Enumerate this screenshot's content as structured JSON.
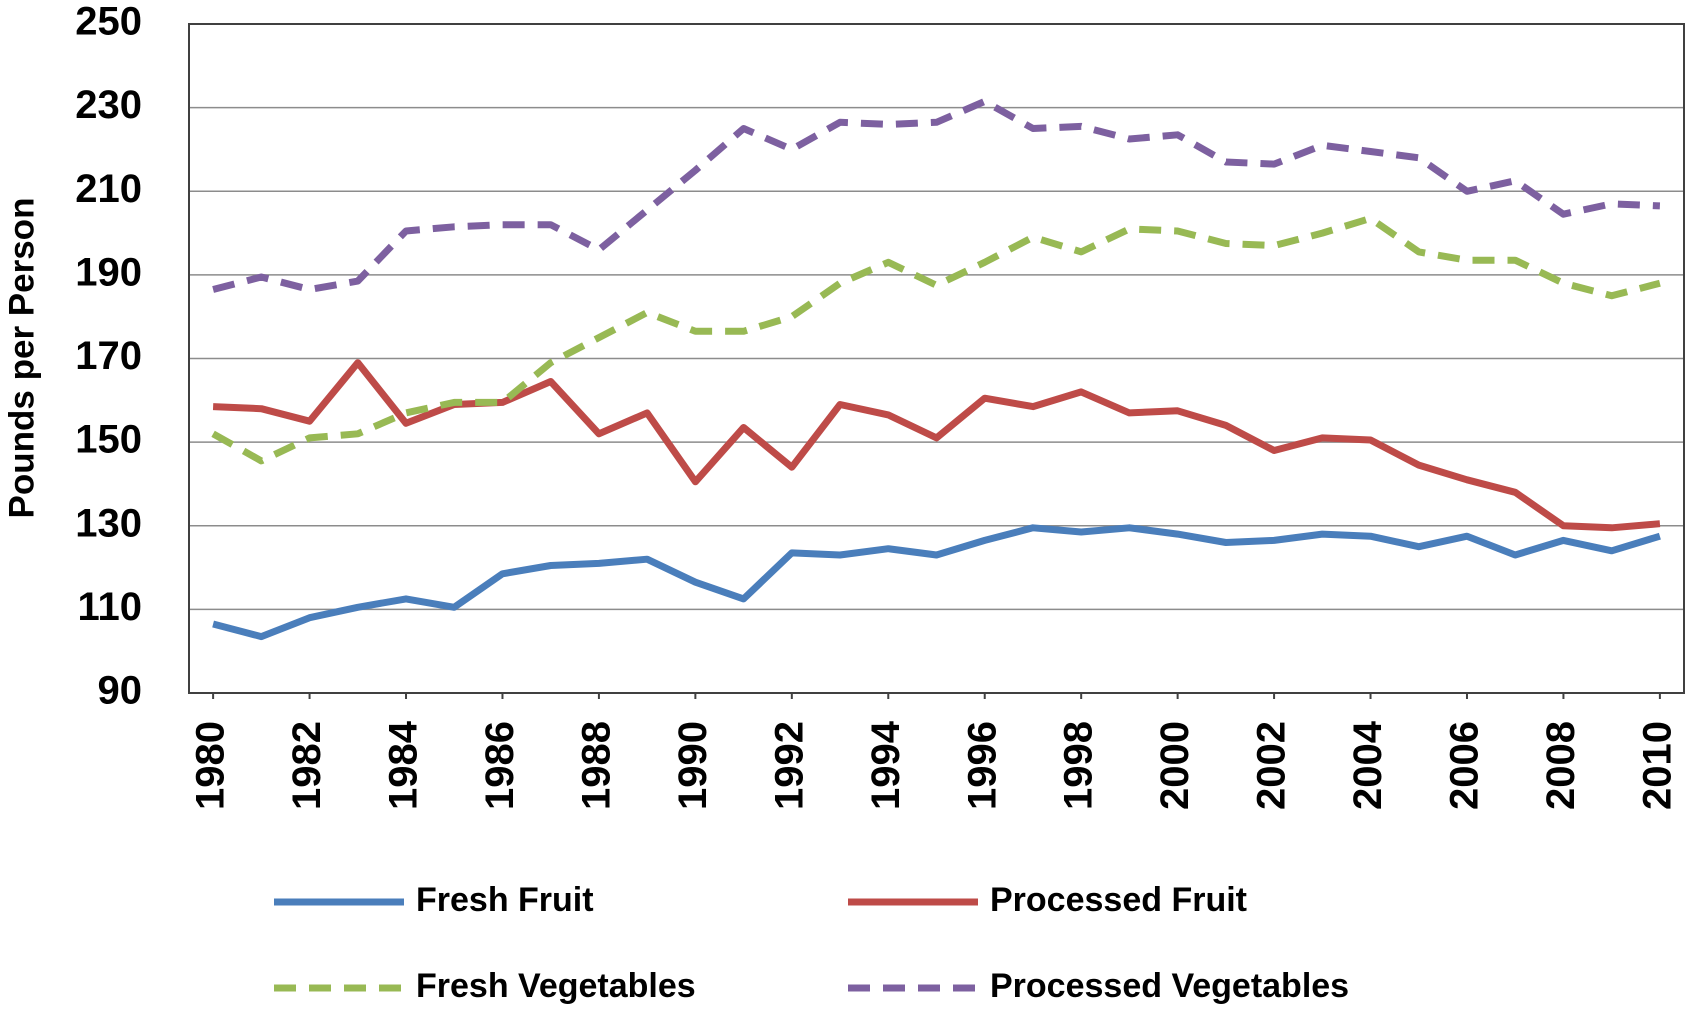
{
  "chart_data": {
    "type": "line",
    "y_label": "Pounds per Person",
    "x": [
      1980,
      1981,
      1982,
      1983,
      1984,
      1985,
      1986,
      1987,
      1988,
      1989,
      1990,
      1991,
      1992,
      1993,
      1994,
      1995,
      1996,
      1997,
      1998,
      1999,
      2000,
      2001,
      2002,
      2003,
      2004,
      2005,
      2006,
      2007,
      2008,
      2009,
      2010
    ],
    "xlim": [
      1979.5,
      2010.5
    ],
    "xticks": [
      1980,
      1982,
      1984,
      1986,
      1988,
      1990,
      1992,
      1994,
      1996,
      1998,
      2000,
      2002,
      2004,
      2006,
      2008,
      2010
    ],
    "ylim": [
      90,
      250
    ],
    "yticks": [
      90,
      110,
      130,
      150,
      170,
      190,
      210,
      230,
      250
    ],
    "grid": true,
    "legend": "bottom",
    "series": [
      {
        "name": "Fresh Fruit",
        "color": "#4a7ebb",
        "line_style": "solid",
        "values": [
          106.5,
          103.5,
          108,
          110.5,
          112.5,
          110.5,
          118.5,
          120.5,
          121,
          122,
          116.5,
          112.5,
          123.5,
          123,
          124.5,
          123,
          126.5,
          129.5,
          128.5,
          129.5,
          128,
          126,
          126.5,
          128,
          127.5,
          125,
          127.5,
          123,
          126.5,
          124,
          127.5
        ]
      },
      {
        "name": "Processed Fruit",
        "color": "#be4b48",
        "line_style": "solid",
        "values": [
          158.5,
          158,
          155,
          169,
          154.5,
          159,
          159.5,
          164.5,
          152,
          157,
          140.5,
          153.5,
          144,
          159,
          156.5,
          151,
          160.5,
          158.5,
          162,
          157,
          157.5,
          154,
          148,
          151,
          150.5,
          144.5,
          141,
          138,
          130,
          129.5,
          130.5
        ]
      },
      {
        "name": "Fresh Vegetables",
        "color": "#98b954",
        "line_style": "dashed",
        "values": [
          152,
          145.5,
          151,
          152,
          157,
          159.5,
          159.5,
          169,
          175,
          181,
          176.5,
          176.5,
          180,
          188,
          193,
          187.5,
          193,
          199,
          195.5,
          201,
          200.5,
          197.5,
          197,
          200,
          203.5,
          195.5,
          193.5,
          193.5,
          188,
          185,
          188
        ]
      },
      {
        "name": "Processed Vegetables",
        "color": "#7d60a0",
        "line_style": "dashed",
        "values": [
          186.5,
          189.5,
          186.5,
          188.5,
          200.5,
          201.5,
          202,
          202,
          196,
          205.5,
          215,
          225,
          220,
          226.5,
          226,
          226.5,
          231.5,
          225,
          225.5,
          222.5,
          223.5,
          217,
          216.5,
          221,
          219.5,
          218,
          210,
          212.5,
          204.5,
          207,
          206.5
        ]
      }
    ]
  }
}
